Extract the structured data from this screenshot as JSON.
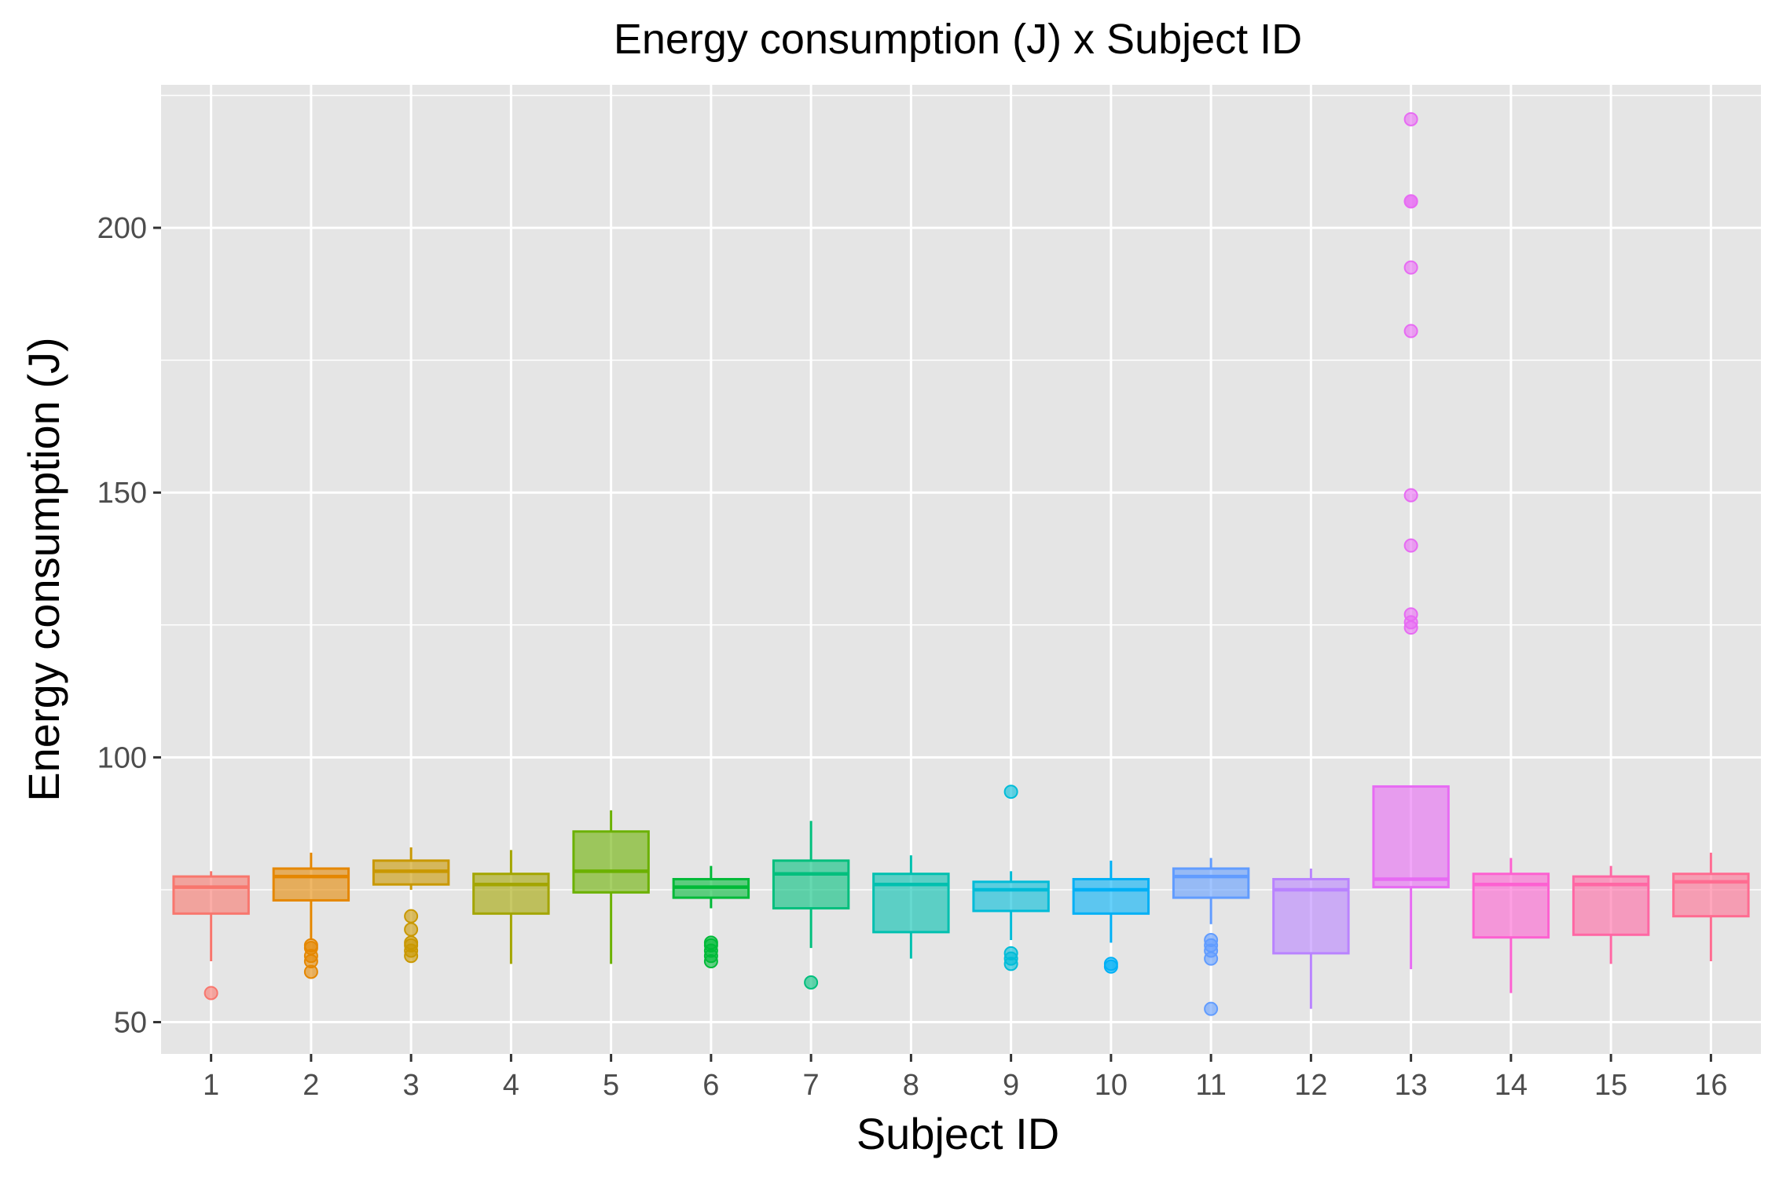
{
  "chart_data": {
    "type": "box",
    "title": "Energy consumption (J) x Subject ID",
    "xlabel": "Subject ID",
    "ylabel": "Energy consumption (J)",
    "ylim": [
      44,
      227
    ],
    "yticks": [
      50,
      100,
      150,
      200
    ],
    "ytick_labels": [
      "50",
      "100",
      "150",
      "200"
    ],
    "grid": true,
    "legend": "none",
    "panel_background": "#e5e5e5",
    "grid_color": "#ffffff",
    "categories": [
      "1",
      "2",
      "3",
      "4",
      "5",
      "6",
      "7",
      "8",
      "9",
      "10",
      "11",
      "12",
      "13",
      "14",
      "15",
      "16"
    ],
    "colors": [
      "#f8766d",
      "#e58700",
      "#c99800",
      "#a3a500",
      "#6bb100",
      "#00ba38",
      "#00bf7d",
      "#00c0af",
      "#00bcd8",
      "#00b0f6",
      "#619cff",
      "#b983ff",
      "#e76bf3",
      "#fd61d1",
      "#ff67a4",
      "#ff6c91"
    ],
    "boxes": [
      {
        "min": 61.5,
        "q1": 70.5,
        "median": 75.5,
        "q3": 77.5,
        "max": 78.5,
        "outliers": [
          55.5
        ]
      },
      {
        "min": 65.5,
        "q1": 73.0,
        "median": 77.5,
        "q3": 79.0,
        "max": 82.0,
        "outliers": [
          59.5,
          61.5,
          62.5,
          64.0,
          64.5
        ]
      },
      {
        "min": 75.0,
        "q1": 76.0,
        "median": 78.5,
        "q3": 80.5,
        "max": 83.0,
        "outliers": [
          62.5,
          63.5,
          64.5,
          65.0,
          67.5,
          70.0
        ]
      },
      {
        "min": 61.0,
        "q1": 70.5,
        "median": 76.0,
        "q3": 78.0,
        "max": 82.5,
        "outliers": []
      },
      {
        "min": 61.0,
        "q1": 74.5,
        "median": 78.5,
        "q3": 86.0,
        "max": 90.0,
        "outliers": []
      },
      {
        "min": 71.5,
        "q1": 73.5,
        "median": 75.5,
        "q3": 77.0,
        "max": 79.5,
        "outliers": [
          61.5,
          62.5,
          63.5,
          64.5,
          65.0
        ]
      },
      {
        "min": 64.0,
        "q1": 71.5,
        "median": 78.0,
        "q3": 80.5,
        "max": 88.0,
        "outliers": [
          57.5
        ]
      },
      {
        "min": 62.0,
        "q1": 67.0,
        "median": 76.0,
        "q3": 78.0,
        "max": 81.5,
        "outliers": []
      },
      {
        "min": 65.5,
        "q1": 71.0,
        "median": 75.0,
        "q3": 76.5,
        "max": 78.5,
        "outliers": [
          61.0,
          62.0,
          63.0,
          93.5
        ]
      },
      {
        "min": 65.0,
        "q1": 70.5,
        "median": 75.0,
        "q3": 77.0,
        "max": 80.5,
        "outliers": [
          60.5,
          61.0
        ]
      },
      {
        "min": 68.5,
        "q1": 73.5,
        "median": 77.5,
        "q3": 79.0,
        "max": 81.0,
        "outliers": [
          52.5,
          62.0,
          63.5,
          64.5,
          65.5
        ]
      },
      {
        "min": 52.5,
        "q1": 63.0,
        "median": 75.0,
        "q3": 77.0,
        "max": 79.0,
        "outliers": []
      },
      {
        "min": 60.0,
        "q1": 75.5,
        "median": 77.0,
        "q3": 94.5,
        "max": 94.5,
        "outliers": [
          124.5,
          125.5,
          127.0,
          140.0,
          149.5,
          180.5,
          192.5,
          205.0,
          205.0,
          220.5
        ]
      },
      {
        "min": 55.5,
        "q1": 66.0,
        "median": 76.0,
        "q3": 78.0,
        "max": 81.0,
        "outliers": []
      },
      {
        "min": 61.0,
        "q1": 66.5,
        "median": 76.0,
        "q3": 77.5,
        "max": 79.5,
        "outliers": []
      },
      {
        "min": 61.5,
        "q1": 70.0,
        "median": 76.5,
        "q3": 78.0,
        "max": 82.0,
        "outliers": []
      }
    ]
  }
}
